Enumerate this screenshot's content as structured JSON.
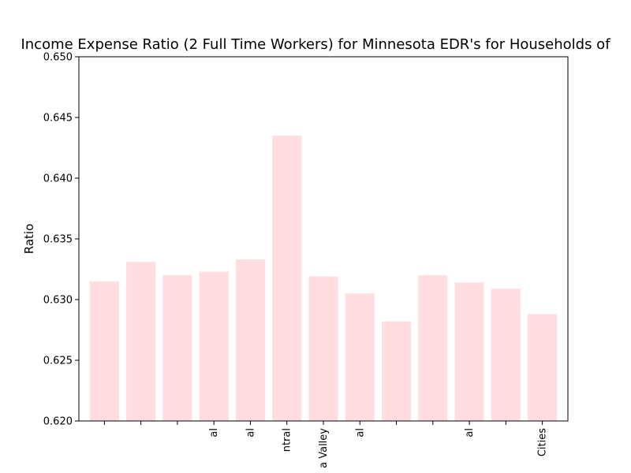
{
  "chart_data": {
    "type": "bar",
    "title": "Income Expense Ratio (2 Full Time Workers) for Minnesota EDR's for Households of",
    "xlabel": "",
    "ylabel": "Ratio",
    "ylim": [
      0.62,
      0.65
    ],
    "yticks": [
      "0.620",
      "0.625",
      "0.630",
      "0.635",
      "0.640",
      "0.645",
      "0.650"
    ],
    "categories": [
      "",
      "",
      "",
      "al",
      "al",
      "ntral",
      "a Valley",
      "al",
      "",
      "",
      "al",
      "",
      "Cities"
    ],
    "values": [
      0.6315,
      0.6331,
      0.632,
      0.6323,
      0.6333,
      0.6435,
      0.6319,
      0.6305,
      0.6282,
      0.632,
      0.6314,
      0.6309,
      0.6288
    ],
    "bar_color": "#ffdde1",
    "grid": false,
    "legend": "none"
  }
}
